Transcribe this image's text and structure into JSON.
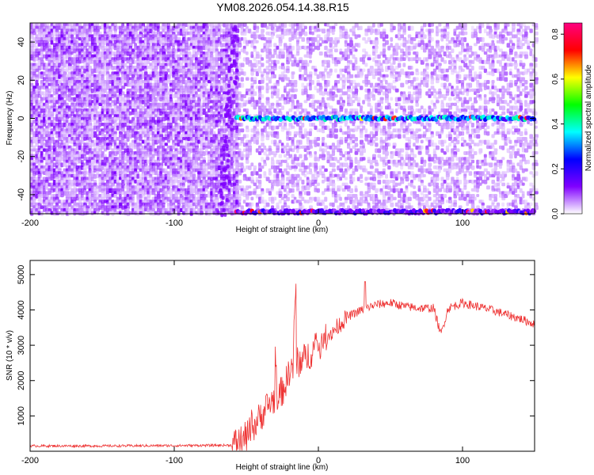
{
  "title": "YM08.2026.054.14.38.R15",
  "chart_data": [
    {
      "type": "heatmap",
      "title": "YM08.2026.054.14.38.R15",
      "xlabel": "Height of straight line (km)",
      "ylabel": "Frequency (Hz)",
      "xlim": [
        -200,
        150
      ],
      "ylim": [
        -50,
        50
      ],
      "xticks": [
        -200,
        -100,
        0,
        100
      ],
      "yticks": [
        -40,
        -20,
        0,
        20,
        40
      ],
      "grid": false,
      "colorbar": {
        "label": "Normalized spectral amplitude",
        "range": [
          0.0,
          0.85
        ],
        "ticks": [
          0.0,
          0.2,
          0.4,
          0.6,
          0.8
        ],
        "colors": [
          "#ffffff",
          "#8000ff",
          "#0000ff",
          "#00ffff",
          "#00ff00",
          "#ffff00",
          "#ff0000",
          "#ff0080"
        ]
      },
      "noise_region": {
        "x": [
          -200,
          -57
        ],
        "level": 0.1
      },
      "tone_lines": [
        {
          "name": "",
          "freq": 0,
          "x": [
            -57,
            150
          ],
          "level": 0.3
        },
        {
          "name": "",
          "freq": -49,
          "x": [
            -57,
            150
          ],
          "level": 0.15
        }
      ]
    },
    {
      "type": "line",
      "xlabel": "Height of straight line (km)",
      "ylabel": "SNR (10 * v/v)",
      "xlim": [
        -200,
        150
      ],
      "ylim": [
        0,
        5400
      ],
      "xticks": [
        -200,
        -100,
        0,
        100
      ],
      "yticks": [
        1000,
        2000,
        3000,
        4000,
        5000
      ],
      "grid": false,
      "series": [
        {
          "color": "#ee3333",
          "x": [
            -200,
            -150,
            -100,
            -60,
            -50,
            -45,
            -40,
            -35,
            -30,
            -25,
            -22,
            -20,
            -15,
            -10,
            0,
            10,
            20,
            30,
            40,
            50,
            60,
            70,
            80,
            85,
            90,
            100,
            120,
            140,
            150
          ],
          "y": [
            150,
            150,
            160,
            170,
            400,
            700,
            1000,
            1300,
            1500,
            1700,
            2000,
            2300,
            2500,
            2600,
            3000,
            3400,
            3800,
            4000,
            4150,
            4200,
            4100,
            4050,
            4050,
            3300,
            4050,
            4200,
            4000,
            3750,
            3600
          ]
        }
      ]
    }
  ]
}
